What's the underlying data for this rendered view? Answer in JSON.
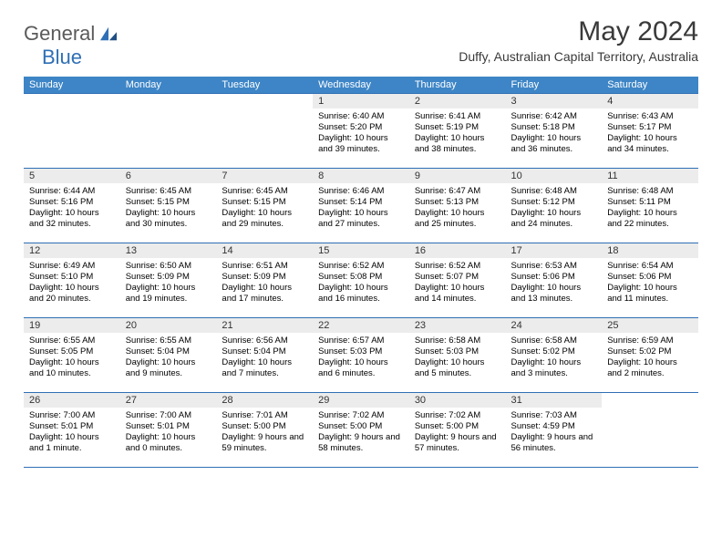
{
  "logo": {
    "part1": "General",
    "part2": "Blue"
  },
  "title": "May 2024",
  "location": "Duffy, Australian Capital Territory, Australia",
  "colors": {
    "header_bg": "#3d85c6",
    "rule": "#2f6fb5",
    "daynum_bg": "#ececec",
    "text": "#000000",
    "title_text": "#3a3a3a",
    "logo_gray": "#5a5a5a",
    "logo_blue": "#2f6fb5"
  },
  "day_headers": [
    "Sunday",
    "Monday",
    "Tuesday",
    "Wednesday",
    "Thursday",
    "Friday",
    "Saturday"
  ],
  "weeks": [
    [
      {
        "num": "",
        "sunrise": "",
        "sunset": "",
        "daylight": ""
      },
      {
        "num": "",
        "sunrise": "",
        "sunset": "",
        "daylight": ""
      },
      {
        "num": "",
        "sunrise": "",
        "sunset": "",
        "daylight": ""
      },
      {
        "num": "1",
        "sunrise": "Sunrise: 6:40 AM",
        "sunset": "Sunset: 5:20 PM",
        "daylight": "Daylight: 10 hours and 39 minutes."
      },
      {
        "num": "2",
        "sunrise": "Sunrise: 6:41 AM",
        "sunset": "Sunset: 5:19 PM",
        "daylight": "Daylight: 10 hours and 38 minutes."
      },
      {
        "num": "3",
        "sunrise": "Sunrise: 6:42 AM",
        "sunset": "Sunset: 5:18 PM",
        "daylight": "Daylight: 10 hours and 36 minutes."
      },
      {
        "num": "4",
        "sunrise": "Sunrise: 6:43 AM",
        "sunset": "Sunset: 5:17 PM",
        "daylight": "Daylight: 10 hours and 34 minutes."
      }
    ],
    [
      {
        "num": "5",
        "sunrise": "Sunrise: 6:44 AM",
        "sunset": "Sunset: 5:16 PM",
        "daylight": "Daylight: 10 hours and 32 minutes."
      },
      {
        "num": "6",
        "sunrise": "Sunrise: 6:45 AM",
        "sunset": "Sunset: 5:15 PM",
        "daylight": "Daylight: 10 hours and 30 minutes."
      },
      {
        "num": "7",
        "sunrise": "Sunrise: 6:45 AM",
        "sunset": "Sunset: 5:15 PM",
        "daylight": "Daylight: 10 hours and 29 minutes."
      },
      {
        "num": "8",
        "sunrise": "Sunrise: 6:46 AM",
        "sunset": "Sunset: 5:14 PM",
        "daylight": "Daylight: 10 hours and 27 minutes."
      },
      {
        "num": "9",
        "sunrise": "Sunrise: 6:47 AM",
        "sunset": "Sunset: 5:13 PM",
        "daylight": "Daylight: 10 hours and 25 minutes."
      },
      {
        "num": "10",
        "sunrise": "Sunrise: 6:48 AM",
        "sunset": "Sunset: 5:12 PM",
        "daylight": "Daylight: 10 hours and 24 minutes."
      },
      {
        "num": "11",
        "sunrise": "Sunrise: 6:48 AM",
        "sunset": "Sunset: 5:11 PM",
        "daylight": "Daylight: 10 hours and 22 minutes."
      }
    ],
    [
      {
        "num": "12",
        "sunrise": "Sunrise: 6:49 AM",
        "sunset": "Sunset: 5:10 PM",
        "daylight": "Daylight: 10 hours and 20 minutes."
      },
      {
        "num": "13",
        "sunrise": "Sunrise: 6:50 AM",
        "sunset": "Sunset: 5:09 PM",
        "daylight": "Daylight: 10 hours and 19 minutes."
      },
      {
        "num": "14",
        "sunrise": "Sunrise: 6:51 AM",
        "sunset": "Sunset: 5:09 PM",
        "daylight": "Daylight: 10 hours and 17 minutes."
      },
      {
        "num": "15",
        "sunrise": "Sunrise: 6:52 AM",
        "sunset": "Sunset: 5:08 PM",
        "daylight": "Daylight: 10 hours and 16 minutes."
      },
      {
        "num": "16",
        "sunrise": "Sunrise: 6:52 AM",
        "sunset": "Sunset: 5:07 PM",
        "daylight": "Daylight: 10 hours and 14 minutes."
      },
      {
        "num": "17",
        "sunrise": "Sunrise: 6:53 AM",
        "sunset": "Sunset: 5:06 PM",
        "daylight": "Daylight: 10 hours and 13 minutes."
      },
      {
        "num": "18",
        "sunrise": "Sunrise: 6:54 AM",
        "sunset": "Sunset: 5:06 PM",
        "daylight": "Daylight: 10 hours and 11 minutes."
      }
    ],
    [
      {
        "num": "19",
        "sunrise": "Sunrise: 6:55 AM",
        "sunset": "Sunset: 5:05 PM",
        "daylight": "Daylight: 10 hours and 10 minutes."
      },
      {
        "num": "20",
        "sunrise": "Sunrise: 6:55 AM",
        "sunset": "Sunset: 5:04 PM",
        "daylight": "Daylight: 10 hours and 9 minutes."
      },
      {
        "num": "21",
        "sunrise": "Sunrise: 6:56 AM",
        "sunset": "Sunset: 5:04 PM",
        "daylight": "Daylight: 10 hours and 7 minutes."
      },
      {
        "num": "22",
        "sunrise": "Sunrise: 6:57 AM",
        "sunset": "Sunset: 5:03 PM",
        "daylight": "Daylight: 10 hours and 6 minutes."
      },
      {
        "num": "23",
        "sunrise": "Sunrise: 6:58 AM",
        "sunset": "Sunset: 5:03 PM",
        "daylight": "Daylight: 10 hours and 5 minutes."
      },
      {
        "num": "24",
        "sunrise": "Sunrise: 6:58 AM",
        "sunset": "Sunset: 5:02 PM",
        "daylight": "Daylight: 10 hours and 3 minutes."
      },
      {
        "num": "25",
        "sunrise": "Sunrise: 6:59 AM",
        "sunset": "Sunset: 5:02 PM",
        "daylight": "Daylight: 10 hours and 2 minutes."
      }
    ],
    [
      {
        "num": "26",
        "sunrise": "Sunrise: 7:00 AM",
        "sunset": "Sunset: 5:01 PM",
        "daylight": "Daylight: 10 hours and 1 minute."
      },
      {
        "num": "27",
        "sunrise": "Sunrise: 7:00 AM",
        "sunset": "Sunset: 5:01 PM",
        "daylight": "Daylight: 10 hours and 0 minutes."
      },
      {
        "num": "28",
        "sunrise": "Sunrise: 7:01 AM",
        "sunset": "Sunset: 5:00 PM",
        "daylight": "Daylight: 9 hours and 59 minutes."
      },
      {
        "num": "29",
        "sunrise": "Sunrise: 7:02 AM",
        "sunset": "Sunset: 5:00 PM",
        "daylight": "Daylight: 9 hours and 58 minutes."
      },
      {
        "num": "30",
        "sunrise": "Sunrise: 7:02 AM",
        "sunset": "Sunset: 5:00 PM",
        "daylight": "Daylight: 9 hours and 57 minutes."
      },
      {
        "num": "31",
        "sunrise": "Sunrise: 7:03 AM",
        "sunset": "Sunset: 4:59 PM",
        "daylight": "Daylight: 9 hours and 56 minutes."
      },
      {
        "num": "",
        "sunrise": "",
        "sunset": "",
        "daylight": ""
      }
    ]
  ]
}
